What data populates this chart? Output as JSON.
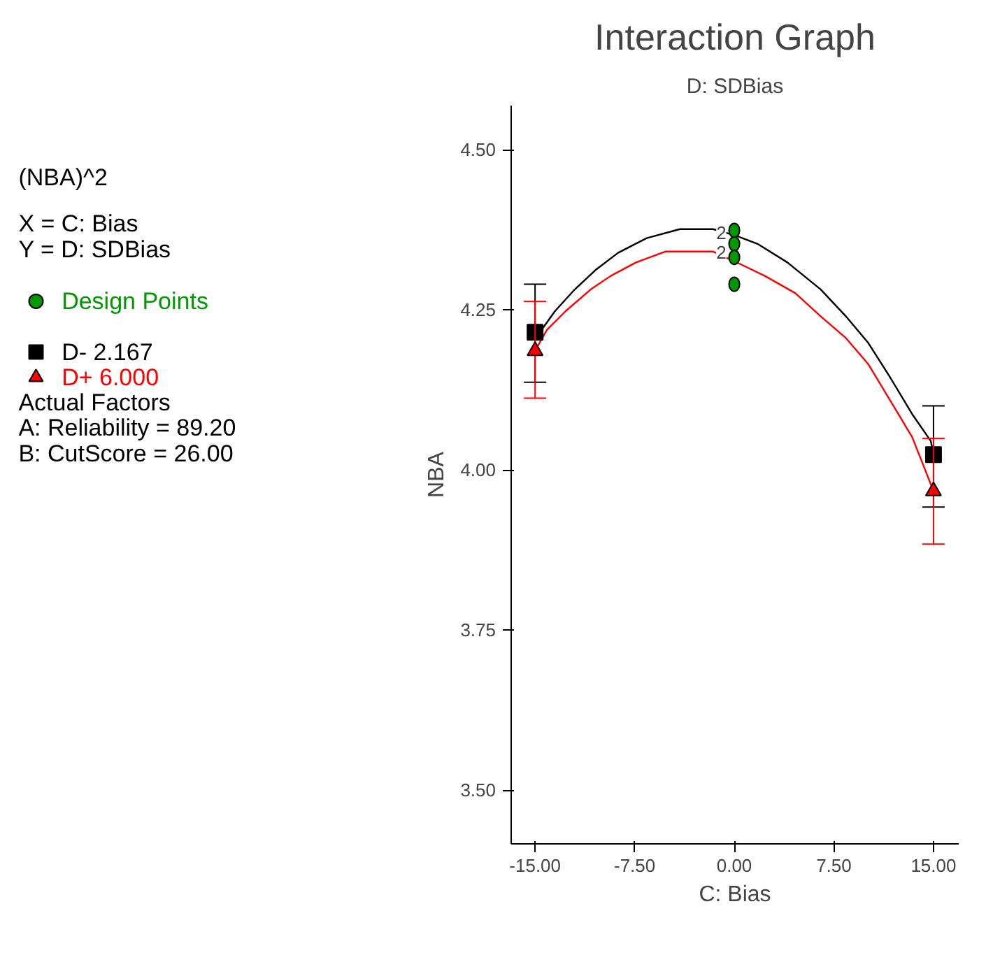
{
  "chart_data": {
    "type": "line",
    "title": "Interaction Graph",
    "subtitle": "D: SDBias",
    "xlabel": "C: Bias",
    "ylabel": "NBA",
    "annotations": [
      "(NBA)^2",
      "X = C: Bias",
      "Y = D: SDBias",
      "Actual Factors",
      "A: Reliability = 89.20",
      "B: CutScore = 26.00",
      {
        "text": "2",
        "x": -0.6,
        "y": 4.37
      },
      {
        "text": "2",
        "x": -0.6,
        "y": 4.34
      }
    ],
    "xlim": [
      -16.8,
      16.9
    ],
    "ylim": [
      3.416,
      4.569
    ],
    "xticks": [
      {
        "value": -15,
        "label": "-15.00"
      },
      {
        "value": -7.5,
        "label": "-7.50"
      },
      {
        "value": 0,
        "label": "0.00"
      },
      {
        "value": 7.5,
        "label": "7.50"
      },
      {
        "value": 15,
        "label": "15.00"
      }
    ],
    "yticks": [
      {
        "value": 3.5,
        "label": "3.50"
      },
      {
        "value": 3.75,
        "label": "3.75"
      },
      {
        "value": 4.0,
        "label": "4.00"
      },
      {
        "value": 4.25,
        "label": "4.25"
      },
      {
        "value": 4.5,
        "label": "4.50"
      }
    ],
    "grid": false,
    "legend": "left",
    "series": [
      {
        "color": "#000000",
        "marker": "none",
        "x": [
          -15,
          -14.5,
          -13.5,
          -12.1,
          -10.4,
          -8.75,
          -6.6,
          -4.1,
          -1.6,
          0.1,
          1.75,
          4.0,
          6.5,
          8.4,
          10.1,
          11.75,
          13.4,
          14.8,
          15
        ],
        "values": [
          4.215,
          4.219,
          4.248,
          4.28,
          4.313,
          4.339,
          4.362,
          4.376,
          4.376,
          4.366,
          4.353,
          4.324,
          4.282,
          4.24,
          4.198,
          4.144,
          4.087,
          4.045,
          4.024
        ]
      },
      {
        "color": "#ff0000",
        "marker": "none",
        "x": [
          -15,
          -14.1,
          -12.7,
          -10.8,
          -9.3,
          -7.4,
          -5.2,
          -1.6,
          0.4,
          2.3,
          4.6,
          6.5,
          8.4,
          10.1,
          11.75,
          13.4,
          15
        ],
        "values": [
          4.186,
          4.219,
          4.248,
          4.282,
          4.303,
          4.324,
          4.341,
          4.341,
          4.322,
          4.303,
          4.276,
          4.24,
          4.206,
          4.165,
          4.108,
          4.051,
          3.967
        ]
      },
      {
        "type": "scatter",
        "name": "D- 2.167",
        "color": "#000000",
        "marker": "square",
        "x": [
          -15,
          15
        ],
        "values": [
          4.215,
          4.024
        ],
        "errors": [
          [
            4.137,
            4.29
          ],
          [
            3.942,
            4.1
          ]
        ]
      },
      {
        "type": "scatter",
        "name": "D+ 6.000",
        "color": "#ff0000",
        "marker": "triangle",
        "x": [
          -15,
          15
        ],
        "values": [
          4.186,
          3.967
        ],
        "errors": [
          [
            4.112,
            4.263
          ],
          [
            3.884,
            4.049
          ]
        ]
      },
      {
        "type": "scatter",
        "name": "Design Points",
        "color": "#009900",
        "marker": "circle",
        "x": [
          0,
          0,
          0,
          0
        ],
        "values": [
          4.374,
          4.353,
          4.332,
          4.29
        ]
      }
    ]
  }
}
